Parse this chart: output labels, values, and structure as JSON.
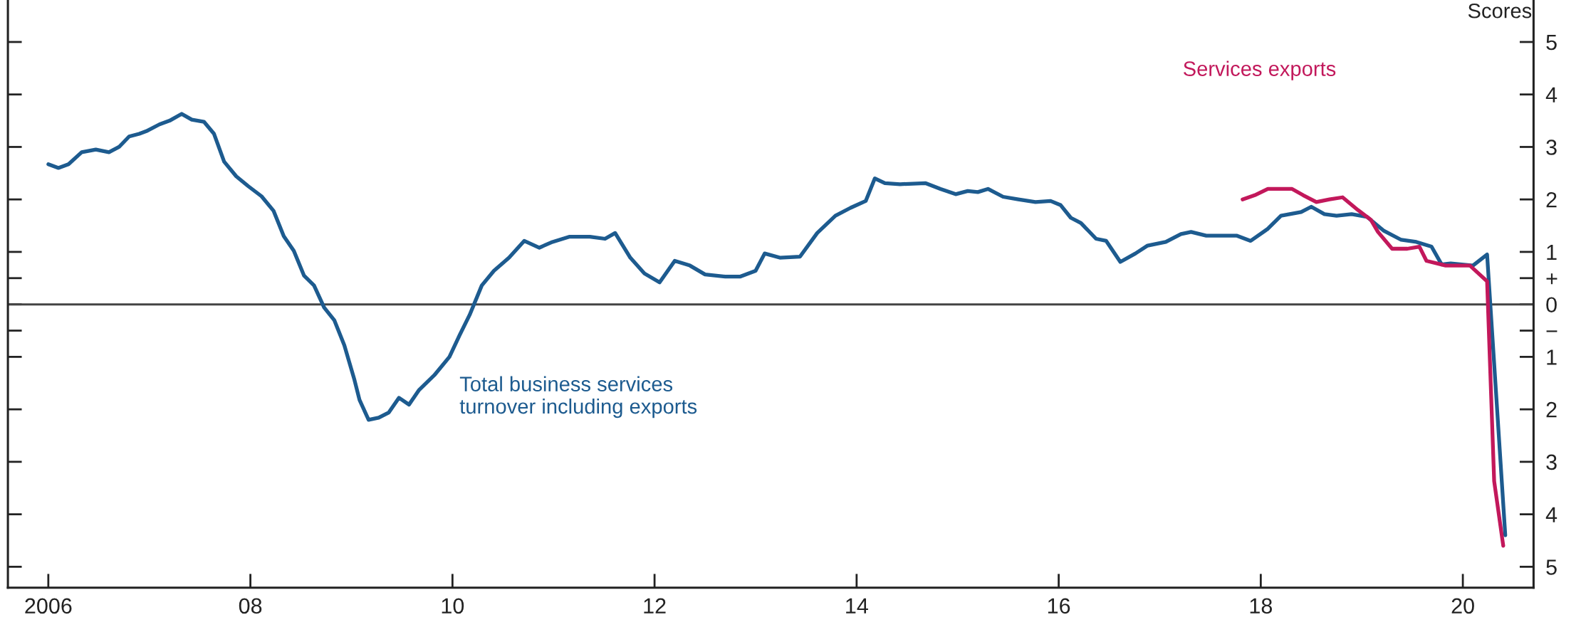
{
  "chart_data": {
    "type": "line",
    "ylabel": "Scores",
    "xlim": [
      2005.6,
      2020.7
    ],
    "ylim": [
      -5.4,
      5.8
    ],
    "xticks": [
      {
        "value": 2006,
        "label": "2006"
      },
      {
        "value": 2008,
        "label": "08"
      },
      {
        "value": 2010,
        "label": "10"
      },
      {
        "value": 2012,
        "label": "12"
      },
      {
        "value": 2014,
        "label": "14"
      },
      {
        "value": 2016,
        "label": "16"
      },
      {
        "value": 2018,
        "label": "18"
      },
      {
        "value": 2020,
        "label": "20"
      }
    ],
    "yticks": [
      5,
      4,
      3,
      2,
      1,
      {
        "value": 0.5,
        "label": "+"
      },
      0,
      {
        "value": -0.5,
        "label": "−"
      },
      {
        "value": -1,
        "label": "1"
      },
      {
        "value": -2,
        "label": "2"
      },
      {
        "value": -3,
        "label": "3"
      },
      {
        "value": -4,
        "label": "4"
      },
      {
        "value": -5,
        "label": "5"
      }
    ],
    "tick_labels": "xy",
    "grid": false,
    "legend": false,
    "marker": "none",
    "line_style": "solid",
    "ref_lines": [
      {
        "axis": "y",
        "value": 0,
        "color": "#444444"
      }
    ],
    "series": [
      {
        "name": "Total business services\nturnover including exports",
        "color": "#1d5b8f",
        "x": [
          2006.0,
          2006.1,
          2006.2,
          2006.33,
          2006.47,
          2006.6,
          2006.7,
          2006.8,
          2006.9,
          2006.97,
          2007.1,
          2007.2,
          2007.32,
          2007.42,
          2007.54,
          2007.64,
          2007.74,
          2007.86,
          2007.98,
          2008.11,
          2008.23,
          2008.33,
          2008.43,
          2008.53,
          2008.63,
          2008.73,
          2008.83,
          2008.93,
          2009.03,
          2009.08,
          2009.17,
          2009.27,
          2009.37,
          2009.47,
          2009.57,
          2009.67,
          2009.82,
          2009.97,
          2010.07,
          2010.17,
          2010.29,
          2010.41,
          2010.56,
          2010.71,
          2010.86,
          2010.99,
          2011.16,
          2011.36,
          2011.51,
          2011.61,
          2011.76,
          2011.9,
          2012.05,
          2012.2,
          2012.35,
          2012.5,
          2012.7,
          2012.85,
          2013.0,
          2013.09,
          2013.24,
          2013.44,
          2013.61,
          2013.79,
          2013.94,
          2014.09,
          2014.18,
          2014.28,
          2014.43,
          2014.68,
          2014.83,
          2014.98,
          2015.1,
          2015.2,
          2015.3,
          2015.45,
          2015.6,
          2015.77,
          2015.92,
          2016.02,
          2016.12,
          2016.22,
          2016.37,
          2016.47,
          2016.61,
          2016.76,
          2016.88,
          2017.06,
          2017.21,
          2017.31,
          2017.46,
          2017.76,
          2017.9,
          2018.07,
          2018.2,
          2018.4,
          2018.5,
          2018.63,
          2018.75,
          2018.9,
          2019.05,
          2019.22,
          2019.39,
          2019.54,
          2019.69,
          2019.79,
          2019.88,
          2020.1,
          2020.24,
          2020.42
        ],
        "values": [
          2.67,
          2.6,
          2.67,
          2.9,
          2.95,
          2.9,
          3.0,
          3.2,
          3.25,
          3.3,
          3.43,
          3.5,
          3.63,
          3.52,
          3.48,
          3.25,
          2.72,
          2.44,
          2.25,
          2.06,
          1.78,
          1.3,
          1.02,
          0.55,
          0.36,
          -0.06,
          -0.3,
          -0.78,
          -1.44,
          -1.82,
          -2.2,
          -2.16,
          -2.06,
          -1.78,
          -1.91,
          -1.63,
          -1.35,
          -1.0,
          -0.59,
          -0.2,
          0.36,
          0.64,
          0.89,
          1.21,
          1.08,
          1.19,
          1.29,
          1.29,
          1.25,
          1.36,
          0.89,
          0.59,
          0.42,
          0.83,
          0.74,
          0.57,
          0.53,
          0.53,
          0.64,
          0.97,
          0.89,
          0.91,
          1.36,
          1.69,
          1.84,
          1.97,
          2.4,
          2.31,
          2.29,
          2.31,
          2.2,
          2.1,
          2.16,
          2.14,
          2.2,
          2.05,
          2.0,
          1.95,
          1.97,
          1.89,
          1.65,
          1.55,
          1.25,
          1.21,
          0.81,
          0.97,
          1.12,
          1.19,
          1.34,
          1.38,
          1.31,
          1.31,
          1.21,
          1.44,
          1.69,
          1.76,
          1.86,
          1.72,
          1.69,
          1.72,
          1.67,
          1.4,
          1.23,
          1.19,
          1.1,
          0.76,
          0.78,
          0.74,
          0.95,
          -4.4
        ]
      },
      {
        "name": "Services exports",
        "color": "#c2185b",
        "x": [
          2017.82,
          2017.94,
          2018.07,
          2018.31,
          2018.42,
          2018.55,
          2018.68,
          2018.81,
          2018.96,
          2019.09,
          2019.16,
          2019.3,
          2019.45,
          2019.57,
          2019.64,
          2019.83,
          2020.07,
          2020.24,
          2020.31,
          2020.4
        ],
        "values": [
          2.0,
          2.08,
          2.2,
          2.2,
          2.08,
          1.95,
          2.0,
          2.04,
          1.8,
          1.61,
          1.38,
          1.06,
          1.06,
          1.1,
          0.83,
          0.74,
          0.74,
          0.44,
          -3.37,
          -4.6
        ]
      }
    ]
  }
}
